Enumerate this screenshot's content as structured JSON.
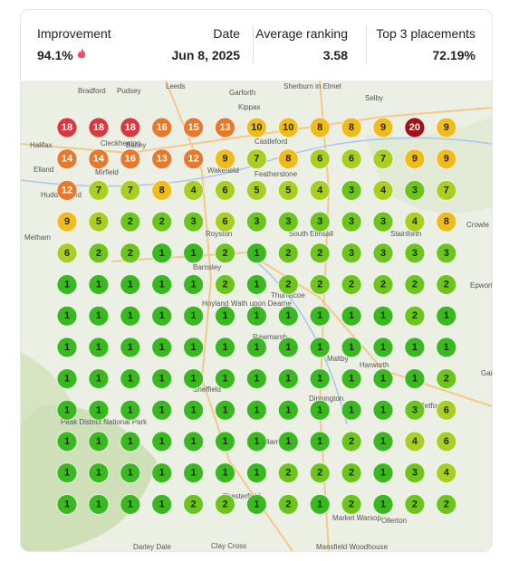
{
  "header": {
    "stats": [
      {
        "label": "Improvement",
        "value": "94.1%"
      },
      {
        "label": "Date",
        "value": "Jun 8, 2025"
      },
      {
        "label": "Average ranking",
        "value": "3.58"
      },
      {
        "label": "Top 3 placements",
        "value": "72.19%"
      }
    ]
  },
  "map": {
    "labels": [
      "Bradford",
      "Pudsey",
      "Leeds",
      "Garforth",
      "Sherburn in Elmet",
      "Selby",
      "Kippax",
      "Castleford",
      "Cleckheaton",
      "Batley",
      "Halifax",
      "Elland",
      "Mirfield",
      "Wakefield",
      "Featherstone",
      "Huddersfield",
      "Royston",
      "Metham",
      "Barnsley",
      "South Elmsall",
      "Thurnscoe",
      "Stainforth",
      "Crowle",
      "Epworth",
      "Hoyland",
      "Wath upon Dearne",
      "Rawmarsh",
      "Sheffield",
      "Maltby",
      "Harworth",
      "Dinnington",
      "Peak District National Park",
      "Killamarsh",
      "Retford",
      "Chesterfield",
      "Market Warsop",
      "Ollerton",
      "Darley Dale",
      "Clay Cross",
      "Mansfield Woodhouse",
      "Gains"
    ]
  },
  "grid": {
    "rows": [
      [
        18,
        18,
        18,
        16,
        15,
        13,
        10,
        10,
        8,
        8,
        9,
        20,
        9
      ],
      [
        14,
        14,
        16,
        13,
        12,
        9,
        7,
        8,
        6,
        6,
        7,
        9,
        9
      ],
      [
        12,
        7,
        7,
        8,
        4,
        6,
        5,
        5,
        4,
        3,
        4,
        3,
        7
      ],
      [
        9,
        5,
        2,
        2,
        3,
        6,
        3,
        3,
        3,
        3,
        3,
        4,
        8
      ],
      [
        6,
        2,
        2,
        1,
        1,
        2,
        1,
        2,
        2,
        3,
        3,
        3,
        3
      ],
      [
        1,
        1,
        1,
        1,
        1,
        2,
        1,
        2,
        2,
        2,
        2,
        2,
        2
      ],
      [
        1,
        1,
        1,
        1,
        1,
        1,
        1,
        1,
        1,
        1,
        1,
        2,
        1
      ],
      [
        1,
        1,
        1,
        1,
        1,
        1,
        1,
        1,
        1,
        1,
        1,
        1,
        1
      ],
      [
        1,
        1,
        1,
        1,
        1,
        1,
        1,
        1,
        1,
        1,
        1,
        1,
        2
      ],
      [
        1,
        1,
        1,
        1,
        1,
        1,
        1,
        1,
        1,
        1,
        1,
        3,
        6
      ],
      [
        1,
        1,
        1,
        1,
        1,
        1,
        1,
        1,
        1,
        2,
        1,
        4,
        6
      ],
      [
        1,
        1,
        1,
        1,
        1,
        1,
        1,
        2,
        2,
        2,
        1,
        3,
        4
      ],
      [
        1,
        1,
        1,
        1,
        2,
        2,
        1,
        2,
        1,
        2,
        1,
        2,
        2
      ]
    ]
  }
}
